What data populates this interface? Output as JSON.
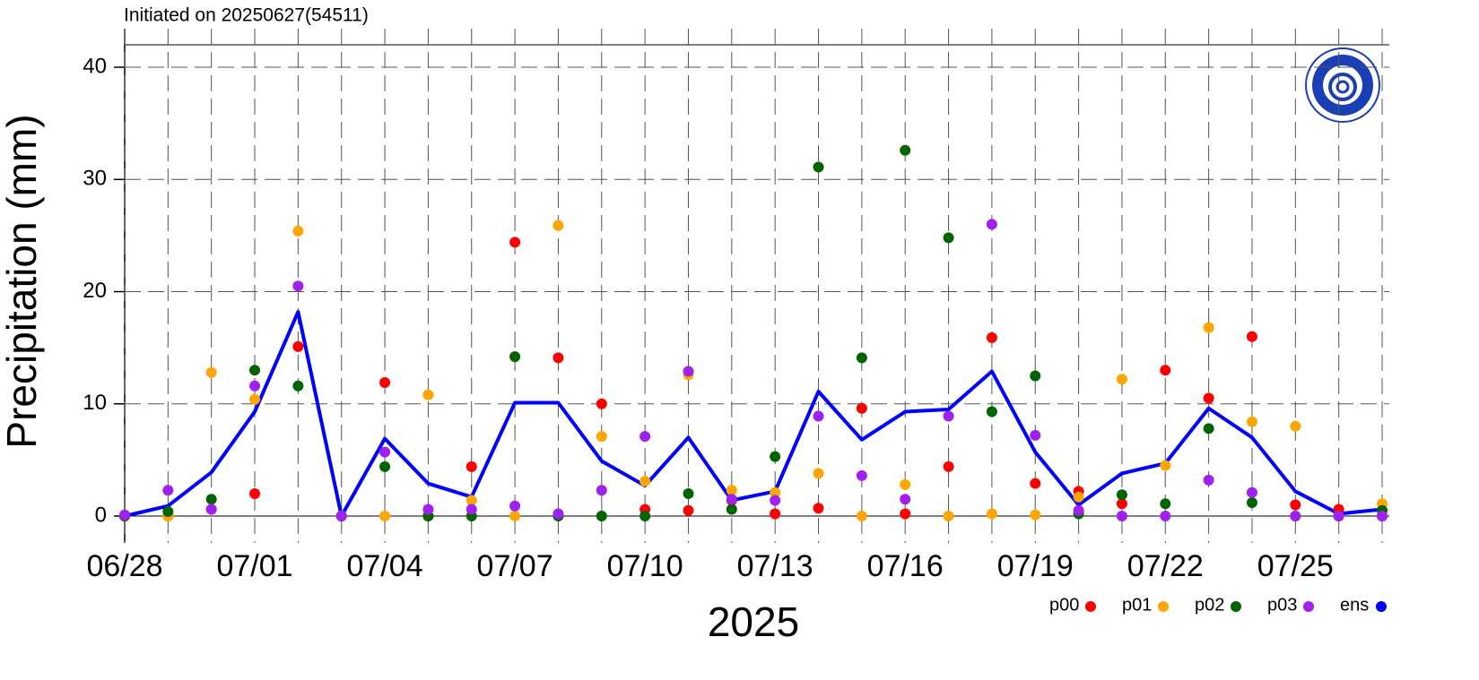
{
  "chart_data": {
    "type": "line",
    "title": "Initiated on 20250627(54511)",
    "y_label": "Precipitation (mm)",
    "x_label": "2025",
    "categories": [
      "06/28",
      null,
      null,
      "07/01",
      null,
      null,
      "07/04",
      null,
      null,
      "07/07",
      null,
      null,
      "07/10",
      null,
      null,
      "07/13",
      null,
      null,
      "07/16",
      null,
      null,
      "07/19",
      null,
      null,
      "07/22",
      null,
      null,
      "07/25",
      null,
      null
    ],
    "ylim": [
      0,
      42
    ],
    "yticks": [
      0,
      10,
      20,
      30,
      40
    ],
    "grid": true,
    "legend": "bottom-right",
    "series": [
      {
        "name": "p00",
        "color": "#ff0000",
        "mode": "markers",
        "values": [
          0,
          0,
          0.6,
          2.0,
          15.1,
          0,
          11.9,
          0,
          4.4,
          24.4,
          14.1,
          10.0,
          0.6,
          0.5,
          1.4,
          0.2,
          0.7,
          9.6,
          0.2,
          4.4,
          15.9,
          2.9,
          2.2,
          1.1,
          13.0,
          10.5,
          16.0,
          1.0,
          0.6,
          0
        ]
      },
      {
        "name": "p01",
        "color": "#ffa500",
        "mode": "markers",
        "values": [
          0,
          0,
          12.8,
          10.4,
          25.4,
          0,
          0,
          10.8,
          1.4,
          0,
          25.9,
          7.1,
          3.1,
          12.6,
          2.3,
          2.1,
          3.8,
          0,
          2.8,
          0,
          0.2,
          0.1,
          1.7,
          12.2,
          4.5,
          16.8,
          8.4,
          8.0,
          0,
          1.1
        ]
      },
      {
        "name": "p02",
        "color": "#006400",
        "mode": "markers",
        "values": [
          0,
          0.4,
          1.5,
          13.0,
          11.6,
          0,
          4.4,
          0,
          0,
          14.2,
          0,
          0,
          0,
          2.0,
          0.6,
          5.3,
          31.1,
          14.1,
          32.6,
          24.8,
          9.3,
          12.5,
          0.2,
          1.9,
          1.1,
          7.8,
          1.2,
          0,
          0,
          0.5
        ]
      },
      {
        "name": "p03",
        "color": "#a020f0",
        "mode": "markers",
        "values": [
          0.1,
          2.3,
          0.6,
          11.6,
          20.5,
          0,
          5.7,
          0.6,
          0.6,
          0.9,
          0.2,
          2.3,
          7.1,
          12.9,
          1.5,
          1.4,
          8.9,
          3.6,
          1.5,
          8.9,
          26.0,
          7.2,
          0.5,
          0,
          0,
          3.2,
          2.1,
          0,
          0,
          0
        ]
      },
      {
        "name": "ens",
        "color": "#0000ff",
        "mode": "lines",
        "values": [
          0,
          0.9,
          3.9,
          9.3,
          18.2,
          0,
          6.9,
          2.9,
          1.7,
          10.1,
          10.1,
          4.9,
          2.7,
          7.0,
          1.4,
          2.2,
          11.1,
          6.8,
          9.3,
          9.5,
          12.9,
          5.7,
          1.0,
          3.8,
          4.7,
          9.6,
          7.0,
          2.2,
          0.2,
          0.6
        ]
      }
    ]
  }
}
